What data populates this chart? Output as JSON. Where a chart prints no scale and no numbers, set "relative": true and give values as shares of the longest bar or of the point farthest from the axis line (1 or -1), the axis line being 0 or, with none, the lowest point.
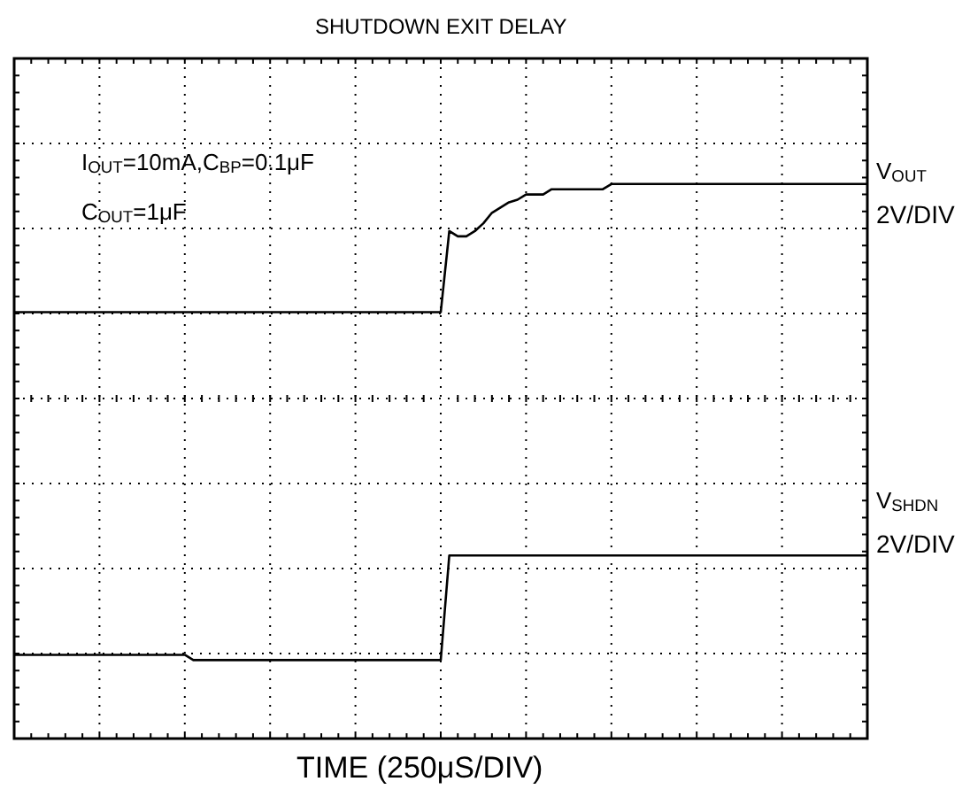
{
  "chart_data": {
    "type": "line",
    "title": "SHUTDOWN EXIT DELAY",
    "xlabel": "TIME (250μS/DIV)",
    "relative": true,
    "grid": true,
    "legend": "right",
    "marker": "none",
    "line_style": "solid",
    "categories": [
      null,
      null,
      null,
      null,
      null,
      null,
      null,
      null,
      null,
      null,
      null,
      null,
      null,
      null,
      null,
      null,
      null,
      null,
      null,
      null,
      null,
      null,
      null,
      null,
      null,
      null,
      null,
      null,
      null,
      null,
      null,
      null,
      null,
      null,
      null,
      null,
      null,
      null,
      null,
      null,
      null,
      null,
      null,
      null,
      null,
      null,
      null,
      null,
      null,
      null,
      null,
      null,
      null,
      null,
      null,
      null,
      null,
      null,
      null,
      null,
      null,
      null,
      null,
      null,
      null,
      null,
      null,
      null,
      null,
      null,
      null,
      null,
      null,
      null,
      null,
      null,
      null,
      null,
      null,
      null,
      null,
      null,
      null,
      null,
      null,
      null,
      null,
      null,
      null,
      null,
      null,
      null,
      null,
      null,
      null,
      null,
      null,
      null,
      null,
      null,
      null
    ],
    "annotations": [
      "I$_{OUT}$=10mA,C$_{BP}$=0.1μF",
      "C$_{OUT}$=1μF",
      "2V/DIV",
      "2V/DIV"
    ],
    "series": [
      {
        "name": "V$_{OUT}$",
        "color": "#000000",
        "values": [
          0.33,
          0.33,
          0.33,
          0.33,
          0.33,
          0.33,
          0.33,
          0.33,
          0.33,
          0.33,
          0.33,
          0.33,
          0.33,
          0.33,
          0.33,
          0.33,
          0.33,
          0.33,
          0.33,
          0.33,
          0.33,
          0.33,
          0.33,
          0.33,
          0.33,
          0.33,
          0.33,
          0.33,
          0.33,
          0.33,
          0.33,
          0.33,
          0.33,
          0.33,
          0.33,
          0.33,
          0.33,
          0.33,
          0.33,
          0.33,
          0.33,
          0.33,
          0.33,
          0.33,
          0.33,
          0.33,
          0.33,
          0.33,
          0.33,
          0.33,
          0.33,
          0.64,
          0.62,
          0.62,
          0.64,
          0.67,
          0.71,
          0.73,
          0.75,
          0.76,
          0.78,
          0.78,
          0.78,
          0.8,
          0.8,
          0.8,
          0.8,
          0.8,
          0.8,
          0.8,
          0.82,
          0.82,
          0.82,
          0.82,
          0.82,
          0.82,
          0.82,
          0.82,
          0.82,
          0.82,
          0.82,
          0.82,
          0.82,
          0.82,
          0.82,
          0.82,
          0.82,
          0.82,
          0.82,
          0.82,
          0.82,
          0.82,
          0.82,
          0.82,
          0.82,
          0.82,
          0.82,
          0.82,
          0.82,
          0.82,
          0.82
        ]
      },
      {
        "name": "V$_{SHDN}$",
        "color": "#000000",
        "values": [
          -0.98,
          -0.98,
          -0.98,
          -0.98,
          -0.98,
          -0.98,
          -0.98,
          -0.98,
          -0.98,
          -0.98,
          -0.98,
          -0.98,
          -0.98,
          -0.98,
          -0.98,
          -0.98,
          -0.98,
          -0.98,
          -0.98,
          -0.98,
          -0.98,
          -1,
          -1,
          -1,
          -1,
          -1,
          -1,
          -1,
          -1,
          -1,
          -1,
          -1,
          -1,
          -1,
          -1,
          -1,
          -1,
          -1,
          -1,
          -1,
          -1,
          -1,
          -1,
          -1,
          -1,
          -1,
          -1,
          -1,
          -1,
          -1,
          -1,
          -0.6,
          -0.6,
          -0.6,
          -0.6,
          -0.6,
          -0.6,
          -0.6,
          -0.6,
          -0.6,
          -0.6,
          -0.6,
          -0.6,
          -0.6,
          -0.6,
          -0.6,
          -0.6,
          -0.6,
          -0.6,
          -0.6,
          -0.6,
          -0.6,
          -0.6,
          -0.6,
          -0.6,
          -0.6,
          -0.6,
          -0.6,
          -0.6,
          -0.6,
          -0.6,
          -0.6,
          -0.6,
          -0.6,
          -0.6,
          -0.6,
          -0.6,
          -0.6,
          -0.6,
          -0.6,
          -0.6,
          -0.6,
          -0.6,
          -0.6,
          -0.6,
          -0.6,
          -0.6,
          -0.6,
          -0.6,
          -0.6,
          -0.6
        ]
      }
    ]
  }
}
